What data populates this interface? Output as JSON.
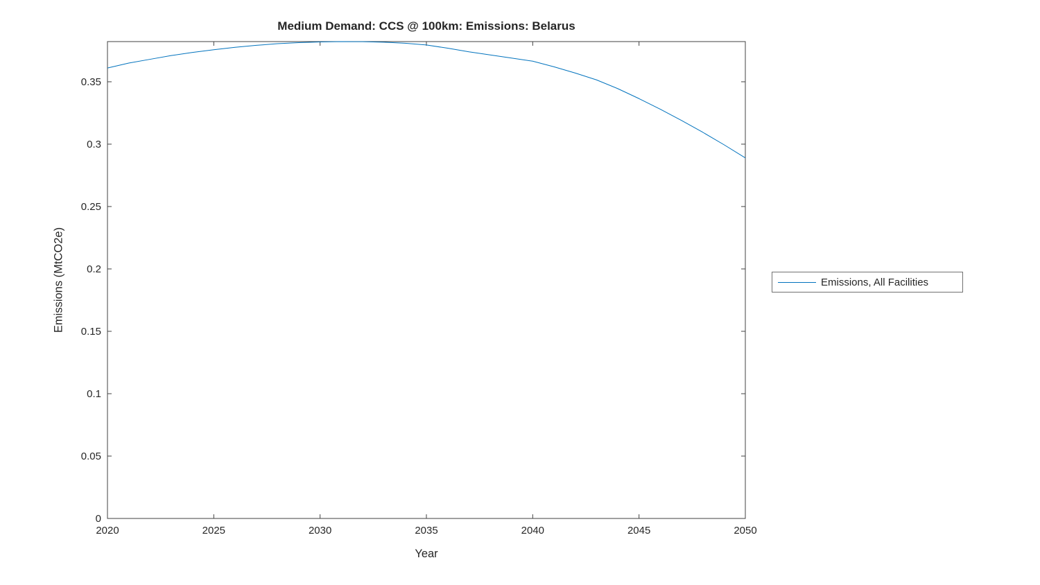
{
  "chart_data": {
    "type": "line",
    "title": "Medium Demand: CCS @ 100km: Emissions: Belarus",
    "xlabel": "Year",
    "ylabel": "Emissions (MtCO2e)",
    "xlim": [
      2020,
      2050
    ],
    "ylim": [
      0,
      0.3822
    ],
    "x_ticks": [
      2020,
      2025,
      2030,
      2035,
      2040,
      2045,
      2050
    ],
    "x_tick_labels": [
      "2020",
      "2025",
      "2030",
      "2035",
      "2040",
      "2045",
      "2050"
    ],
    "y_ticks": [
      0,
      0.05,
      0.1,
      0.15,
      0.2,
      0.25,
      0.3,
      0.35
    ],
    "y_tick_labels": [
      "0",
      "0.05",
      "0.1",
      "0.15",
      "0.2",
      "0.25",
      "0.3",
      "0.35"
    ],
    "grid": false,
    "legend_position": "right-outside",
    "series": [
      {
        "name": "Emissions, All Facilities",
        "color": "#0072BD",
        "x": [
          2020,
          2021,
          2022,
          2023,
          2024,
          2025,
          2026,
          2027,
          2028,
          2029,
          2030,
          2031,
          2032,
          2033,
          2034,
          2035,
          2036,
          2037,
          2038,
          2039,
          2040,
          2041,
          2042,
          2043,
          2044,
          2045,
          2046,
          2047,
          2048,
          2049,
          2050
        ],
        "values": [
          0.361,
          0.365,
          0.368,
          0.371,
          0.3735,
          0.3757,
          0.3776,
          0.3792,
          0.3805,
          0.3814,
          0.3819,
          0.3822,
          0.3821,
          0.3817,
          0.3809,
          0.3795,
          0.3769,
          0.374,
          0.3715,
          0.369,
          0.3665,
          0.362,
          0.357,
          0.3515,
          0.3445,
          0.3365,
          0.328,
          0.319,
          0.3095,
          0.2995,
          0.289
        ]
      }
    ]
  },
  "legend": {
    "entries": [
      {
        "label": "Emissions, All Facilities",
        "color": "#0072BD"
      }
    ]
  },
  "colors": {
    "line": "#0072BD",
    "axis": "#404040",
    "text": "#262626",
    "background": "#ffffff"
  }
}
